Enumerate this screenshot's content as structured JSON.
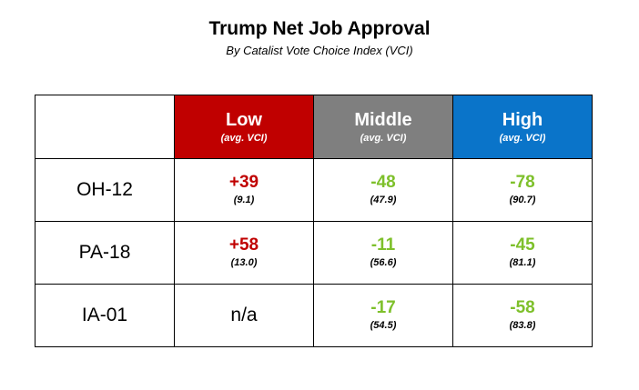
{
  "title": "Trump Net Job Approval",
  "subtitle": "By Catalist Vote Choice Index (VCI)",
  "colors": {
    "low_header": "#c00000",
    "middle_header": "#7f7f7f",
    "high_header": "#0a74c9",
    "positive_value": "#c00000",
    "negative_value": "#7ec02b"
  },
  "chart_data": {
    "type": "table",
    "title": "Trump Net Job Approval",
    "subtitle": "By Catalist Vote Choice Index (VCI)",
    "columns": [
      {
        "label": "Low",
        "sublabel": "(avg. VCI)"
      },
      {
        "label": "Middle",
        "sublabel": "(avg. VCI)"
      },
      {
        "label": "High",
        "sublabel": "(avg. VCI)"
      }
    ],
    "rows": [
      {
        "district": "OH-12",
        "cells": [
          {
            "value": "+39",
            "vci": "(9.1)"
          },
          {
            "value": "-48",
            "vci": "(47.9)"
          },
          {
            "value": "-78",
            "vci": "(90.7)"
          }
        ]
      },
      {
        "district": "PA-18",
        "cells": [
          {
            "value": "+58",
            "vci": "(13.0)"
          },
          {
            "value": "-11",
            "vci": "(56.6)"
          },
          {
            "value": "-45",
            "vci": "(81.1)"
          }
        ]
      },
      {
        "district": "IA-01",
        "cells": [
          {
            "value": "n/a",
            "vci": ""
          },
          {
            "value": "-17",
            "vci": "(54.5)"
          },
          {
            "value": "-58",
            "vci": "(83.8)"
          }
        ]
      }
    ]
  }
}
